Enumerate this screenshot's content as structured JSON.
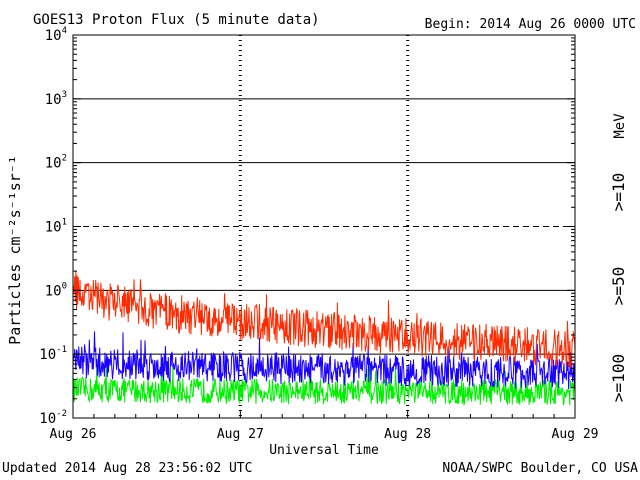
{
  "chart_data": {
    "type": "line",
    "title": "GOES13 Proton Flux (5 minute data)",
    "begin_label": "Begin: 2014 Aug 26 0000 UTC",
    "xlabel": "Universal Time",
    "ylabel": "Particles cm⁻²s⁻¹sr⁻¹",
    "yscale": "log",
    "ylim": [
      0.01,
      10000
    ],
    "y_ticks": [
      {
        "value": 10000,
        "base": "10",
        "exp": "4"
      },
      {
        "value": 1000,
        "base": "10",
        "exp": "3"
      },
      {
        "value": 100,
        "base": "10",
        "exp": "2"
      },
      {
        "value": 10,
        "base": "10",
        "exp": "1"
      },
      {
        "value": 1,
        "base": "10",
        "exp": "0"
      },
      {
        "value": 0.1,
        "base": "10",
        "exp": "-1"
      },
      {
        "value": 0.01,
        "base": "10",
        "exp": "-2"
      }
    ],
    "x_categories": [
      "Aug 26",
      "Aug 27",
      "Aug 28",
      "Aug 29"
    ],
    "xlim_days": [
      0,
      3
    ],
    "unit_label": "MeV",
    "series": [
      {
        "name": ">=10",
        "color": "#ff2a00",
        "start": 1.1,
        "end": 0.12,
        "spread": 0.6
      },
      {
        "name": ">=50",
        "color": "#1a00ff",
        "start": 0.08,
        "end": 0.05,
        "spread": 0.5
      },
      {
        "name": ">=100",
        "color": "#00ee00",
        "start": 0.028,
        "end": 0.025,
        "spread": 0.4
      }
    ],
    "footer_left": "Updated 2014 Aug 28 23:56:02 UTC",
    "footer_right": "NOAA/SWPC Boulder, CO USA",
    "grid": true
  }
}
